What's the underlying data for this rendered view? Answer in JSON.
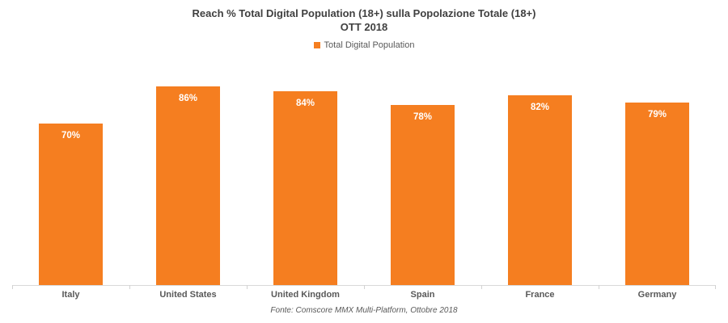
{
  "chart_data": {
    "type": "bar",
    "title": "Reach % Total Digital Population (18+) sulla Popolazione Totale (18+)",
    "subtitle": "OTT 2018",
    "legend": [
      "Total Digital Population"
    ],
    "legend_position": "top-center",
    "categories": [
      "Italy",
      "United States",
      "United Kingdom",
      "Spain",
      "France",
      "Germany"
    ],
    "values": [
      70,
      86,
      84,
      78,
      82,
      79
    ],
    "data_labels": [
      "70%",
      "86%",
      "84%",
      "78%",
      "82%",
      "79%"
    ],
    "xlabel": "",
    "ylabel": "",
    "ylim": [
      0,
      100
    ],
    "grid": false
  },
  "footer": {
    "source": "Fonte: Comscore MMX Multi-Platform, Ottobre 2018"
  },
  "colors": {
    "bar": "#F57E20",
    "title_text": "#404040",
    "axis_label_text": "#595959",
    "axis_line": "#D9D9D9",
    "data_label_text": "#FFFFFF",
    "legend_text": "#595959"
  }
}
